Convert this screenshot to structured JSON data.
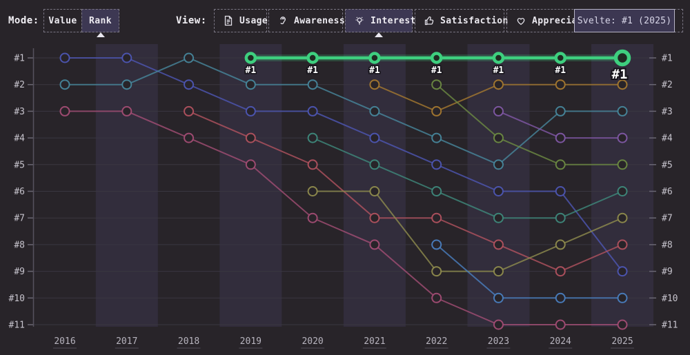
{
  "topbar": {
    "mode": {
      "label": "Mode:",
      "buttons": [
        {
          "label": "Value",
          "selected": false
        },
        {
          "label": "Rank",
          "selected": true
        }
      ]
    },
    "view": {
      "label": "View:",
      "buttons": [
        {
          "label": "Usage",
          "icon": "document-icon",
          "selected": false
        },
        {
          "label": "Awareness",
          "icon": "ear-icon",
          "selected": false
        },
        {
          "label": "Interest",
          "icon": "lightbulb-icon",
          "selected": true
        },
        {
          "label": "Satisfaction",
          "icon": "thumbs-up-icon",
          "selected": false
        },
        {
          "label": "Appreciation",
          "icon": "heart-icon",
          "selected": false
        }
      ]
    },
    "tooltip": {
      "text": "Svelte: #1 (2025)"
    }
  },
  "chart_data": {
    "type": "line",
    "subtype": "bump-rank",
    "title": "",
    "xlabel": "",
    "ylabel": "",
    "years": [
      2016,
      2017,
      2018,
      2019,
      2020,
      2021,
      2022,
      2023,
      2024,
      2025
    ],
    "rank_labels": [
      "#1",
      "#2",
      "#3",
      "#4",
      "#5",
      "#6",
      "#7",
      "#8",
      "#9",
      "#10",
      "#11"
    ],
    "rank_range": [
      1,
      11
    ],
    "grid": true,
    "style": {
      "background": "#282429",
      "band_color": "#3b3650",
      "band_opacity": 0.5,
      "grid_color": "#3a3741",
      "axis_color": "#56525e",
      "tick_color": "#6a6773"
    },
    "highlight_series": {
      "name": "Svelte",
      "color": "#3ecf7f",
      "point_label": "#1",
      "endpoint_label": "#1",
      "points": [
        [
          2019,
          1
        ],
        [
          2020,
          1
        ],
        [
          2021,
          1
        ],
        [
          2022,
          1
        ],
        [
          2023,
          1
        ],
        [
          2024,
          1
        ],
        [
          2025,
          1
        ]
      ]
    },
    "series": [
      {
        "id": "indigo",
        "color": "#4d56b4",
        "points": [
          [
            2016,
            1
          ],
          [
            2017,
            1
          ],
          [
            2018,
            2
          ],
          [
            2019,
            3
          ],
          [
            2020,
            3
          ],
          [
            2021,
            4
          ],
          [
            2022,
            5
          ],
          [
            2023,
            6
          ],
          [
            2024,
            6
          ],
          [
            2025,
            9
          ]
        ]
      },
      {
        "id": "steel-teal",
        "color": "#47879c",
        "points": [
          [
            2016,
            2
          ],
          [
            2017,
            2
          ],
          [
            2018,
            1
          ],
          [
            2019,
            2
          ],
          [
            2020,
            2
          ],
          [
            2021,
            3
          ],
          [
            2022,
            4
          ],
          [
            2023,
            5
          ],
          [
            2024,
            3
          ],
          [
            2025,
            3
          ]
        ]
      },
      {
        "id": "pink-maroon",
        "color": "#a34d74",
        "points": [
          [
            2016,
            3
          ],
          [
            2017,
            3
          ],
          [
            2018,
            4
          ],
          [
            2019,
            5
          ],
          [
            2020,
            7
          ],
          [
            2021,
            8
          ],
          [
            2022,
            10
          ],
          [
            2023,
            11
          ],
          [
            2024,
            11
          ],
          [
            2025,
            11
          ]
        ]
      },
      {
        "id": "rose",
        "color": "#b2525f",
        "points": [
          [
            2018,
            3
          ],
          [
            2019,
            4
          ],
          [
            2020,
            5
          ],
          [
            2021,
            7
          ],
          [
            2022,
            7
          ],
          [
            2023,
            8
          ],
          [
            2024,
            9
          ],
          [
            2025,
            8
          ]
        ]
      },
      {
        "id": "sea-green",
        "color": "#3e8a7c",
        "points": [
          [
            2020,
            4
          ],
          [
            2021,
            5
          ],
          [
            2022,
            6
          ],
          [
            2023,
            7
          ],
          [
            2024,
            7
          ],
          [
            2025,
            6
          ]
        ]
      },
      {
        "id": "olive",
        "color": "#8f8c4d",
        "points": [
          [
            2020,
            6
          ],
          [
            2021,
            6
          ],
          [
            2022,
            9
          ],
          [
            2023,
            9
          ],
          [
            2024,
            8
          ],
          [
            2025,
            7
          ]
        ]
      },
      {
        "id": "tan-orange",
        "color": "#a5792f",
        "points": [
          [
            2021,
            2
          ],
          [
            2022,
            3
          ],
          [
            2023,
            2
          ],
          [
            2024,
            2
          ],
          [
            2025,
            2
          ]
        ]
      },
      {
        "id": "olive-green",
        "color": "#6d8b42",
        "points": [
          [
            2022,
            2
          ],
          [
            2023,
            4
          ],
          [
            2024,
            5
          ],
          [
            2025,
            5
          ]
        ]
      },
      {
        "id": "steel-blue",
        "color": "#4a80c0",
        "points": [
          [
            2022,
            8
          ],
          [
            2023,
            10
          ],
          [
            2024,
            10
          ],
          [
            2025,
            10
          ]
        ]
      },
      {
        "id": "purple",
        "color": "#8158a6",
        "points": [
          [
            2023,
            3
          ],
          [
            2024,
            4
          ],
          [
            2025,
            4
          ]
        ]
      }
    ]
  }
}
